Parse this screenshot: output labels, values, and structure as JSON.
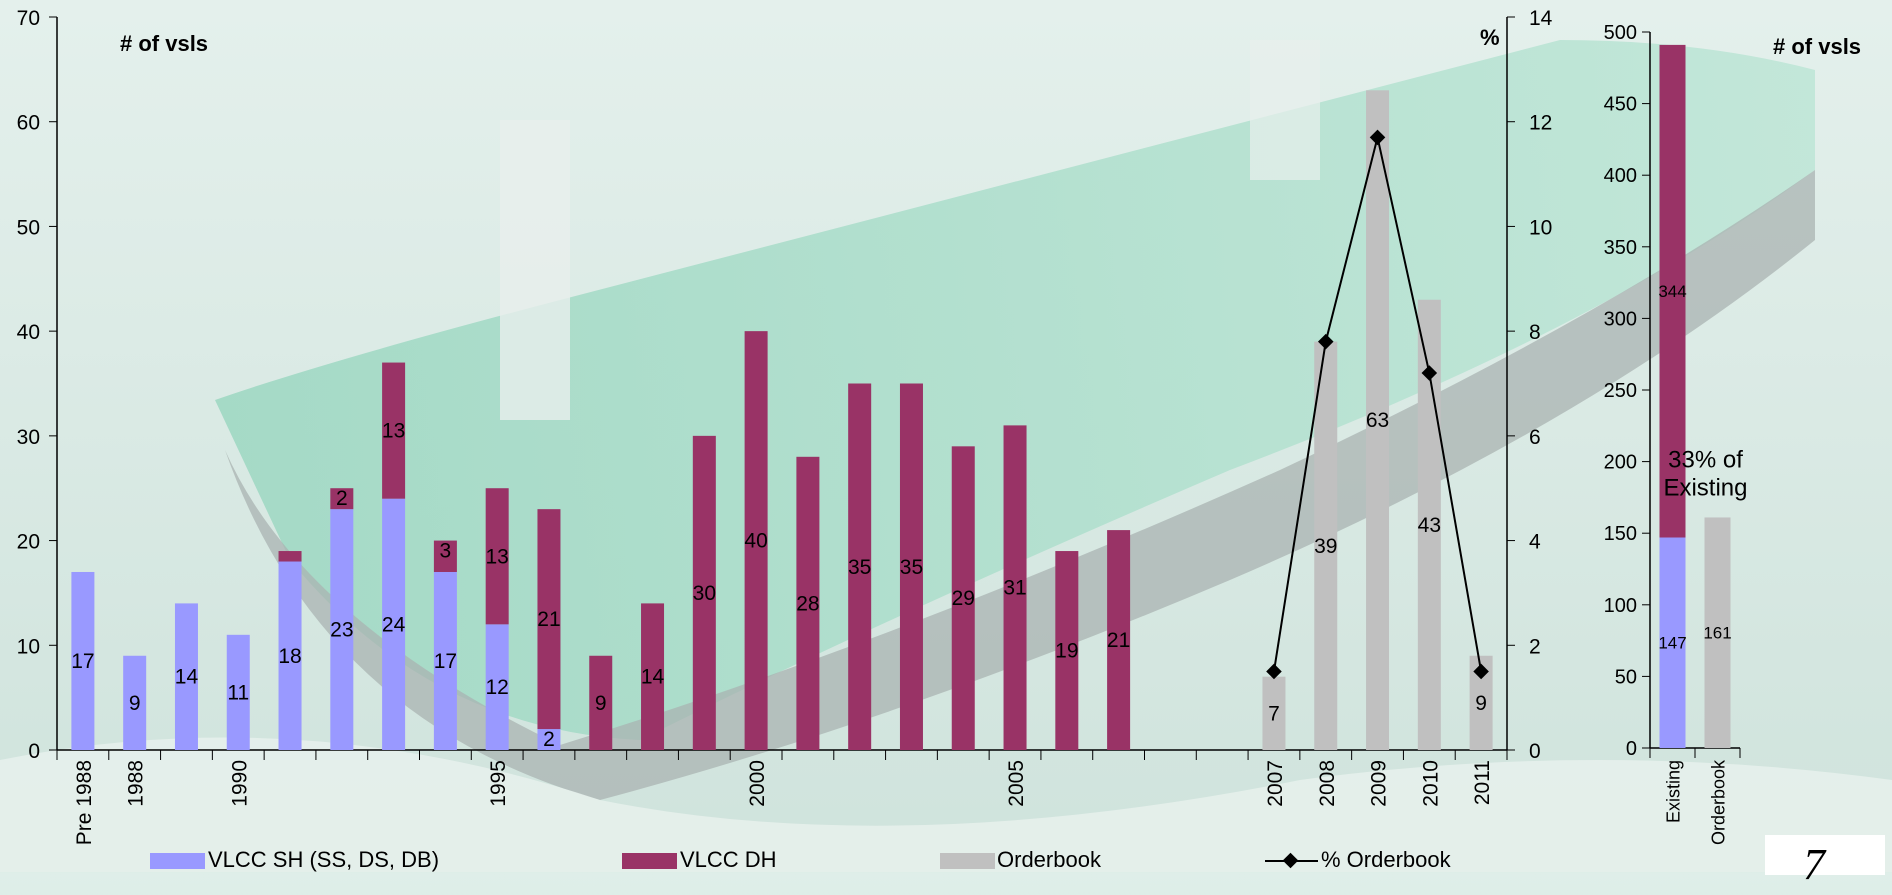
{
  "chart_data": [
    {
      "type": "bar",
      "stacked": true,
      "title": "",
      "ylabel": "# of vsls",
      "ylim": [
        0,
        70
      ],
      "y_ticks": [
        0,
        10,
        20,
        30,
        40,
        50,
        60,
        70
      ],
      "y2label": "%",
      "y2lim": [
        0,
        14
      ],
      "y2_ticks": [
        0,
        2,
        4,
        6,
        8,
        10,
        12,
        14
      ],
      "categories": [
        "Pre 1988",
        "1988",
        "",
        "1990",
        "",
        "",
        "",
        "",
        "1995",
        "",
        "",
        "",
        "",
        "2000",
        "",
        "",
        "",
        "",
        "2005",
        "",
        "",
        "",
        "",
        "2007",
        "2008",
        "2009",
        "2010",
        "2011"
      ],
      "series": [
        {
          "name": "VLCC SH (SS, DS, DB)",
          "color": "#9999ff",
          "values": [
            17,
            9,
            14,
            11,
            18,
            23,
            24,
            17,
            12,
            2,
            0,
            0,
            0,
            0,
            0,
            0,
            0,
            0,
            0,
            0,
            0,
            0,
            0,
            0,
            0,
            0,
            0,
            0
          ],
          "labels": [
            "17",
            "9",
            "14",
            "11",
            "18",
            "23",
            "24",
            "17",
            "12",
            "2",
            "",
            "",
            "",
            "",
            "",
            "",
            "",
            "",
            "",
            "",
            "",
            "",
            "",
            "",
            "",
            "",
            "",
            ""
          ]
        },
        {
          "name": "VLCC DH",
          "color": "#993366",
          "values": [
            0,
            0,
            0,
            0,
            1,
            2,
            13,
            3,
            13,
            21,
            9,
            14,
            30,
            40,
            28,
            35,
            35,
            29,
            31,
            19,
            21,
            0,
            0,
            0,
            0,
            0,
            0,
            0
          ],
          "labels": [
            "",
            "",
            "",
            "",
            "",
            "2",
            "13",
            "3",
            "13",
            "21",
            "9",
            "14",
            "30",
            "40",
            "28",
            "35",
            "35",
            "29",
            "31",
            "19",
            "21",
            "",
            "",
            "",
            "",
            "",
            "",
            ""
          ]
        },
        {
          "name": "Orderbook",
          "color": "#c0c0c0",
          "values": [
            0,
            0,
            0,
            0,
            0,
            0,
            0,
            0,
            0,
            0,
            0,
            0,
            0,
            0,
            0,
            0,
            0,
            0,
            0,
            0,
            0,
            0,
            0,
            7,
            39,
            63,
            43,
            9
          ],
          "labels": [
            "",
            "",
            "",
            "",
            "",
            "",
            "",
            "",
            "",
            "",
            "",
            "",
            "",
            "",
            "",
            "",
            "",
            "",
            "",
            "",
            "",
            "",
            "",
            "7",
            "39",
            "63",
            "43",
            "9"
          ]
        }
      ],
      "line_series": {
        "name": "% Orderbook",
        "axis": "right",
        "color": "#000000",
        "points": [
          {
            "category": "2007",
            "value": 1.5
          },
          {
            "category": "2008",
            "value": 7.8
          },
          {
            "category": "2009",
            "value": 11.7
          },
          {
            "category": "2010",
            "value": 7.2
          },
          {
            "category": "2011",
            "value": 1.5
          }
        ]
      },
      "legend": [
        "VLCC SH (SS, DS, DB)",
        "VLCC DH",
        "Orderbook",
        "% Orderbook"
      ],
      "legend_position": "bottom"
    },
    {
      "type": "bar",
      "stacked": true,
      "title": "",
      "ylabel": "# of vsls",
      "ylim": [
        0,
        500
      ],
      "y_ticks": [
        0,
        50,
        100,
        150,
        200,
        250,
        300,
        350,
        400,
        450,
        500
      ],
      "categories": [
        "Existing",
        "Orderbook"
      ],
      "series": [
        {
          "name": "VLCC SH (SS, DS, DB)",
          "color": "#9999ff",
          "values": [
            147,
            0
          ],
          "labels": [
            "147",
            ""
          ]
        },
        {
          "name": "VLCC DH",
          "color": "#993366",
          "values": [
            344,
            0
          ],
          "labels": [
            "344",
            ""
          ]
        },
        {
          "name": "Orderbook",
          "color": "#c0c0c0",
          "values": [
            0,
            161
          ],
          "labels": [
            "",
            "161"
          ]
        }
      ],
      "annotation": "33% of Existing"
    }
  ],
  "page_number": "7"
}
